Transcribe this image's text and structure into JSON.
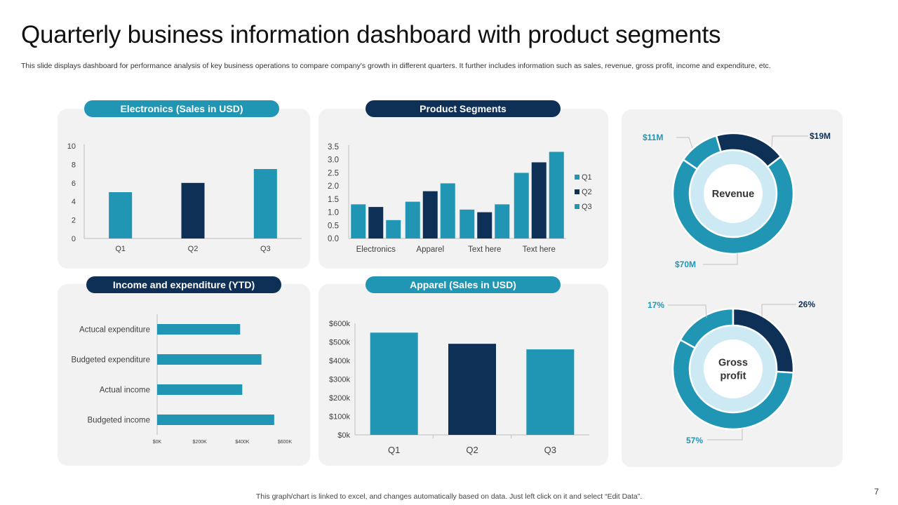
{
  "title": "Quarterly business information dashboard with product segments",
  "subtitle": "This slide displays dashboard for performance analysis of key business operations to compare company's growth in different quarters. It further includes information such as sales, revenue, gross profit, income and expenditure, etc.",
  "footer": "This graph/chart is linked to excel,  and changes automatically based on data. Just left click on it and select “Edit Data”.",
  "page_number": "7",
  "colors": {
    "teal": "#2196b4",
    "navy": "#0e2f56",
    "light": "#cdeaf4",
    "panel": "#f2f2f2"
  },
  "panels": {
    "electronics": "Electronics (Sales in USD)",
    "segments": "Product Segments",
    "income": "Income and expenditure (YTD)",
    "apparel": "Apparel (Sales in USD)"
  },
  "chart_data": [
    {
      "id": "electronics",
      "type": "bar",
      "title": "Electronics (Sales in USD)",
      "categories": [
        "Q1",
        "Q2",
        "Q3"
      ],
      "values": [
        5,
        6,
        7.5
      ],
      "ylim": [
        0,
        10
      ],
      "yticks": [
        "0",
        "2",
        "4",
        "6",
        "8",
        "10"
      ],
      "ytick_values": [
        0,
        2,
        4,
        6,
        8,
        10
      ],
      "colors": [
        "#2196b4",
        "#0e2f56",
        "#2196b4"
      ]
    },
    {
      "id": "segments",
      "type": "bar",
      "title": "Product Segments",
      "categories": [
        "Electronics",
        "Apparel",
        "Text here",
        "Text here"
      ],
      "series": [
        {
          "name": "Q1",
          "values": [
            1.3,
            1.4,
            1.1,
            2.5
          ],
          "color": "#2196b4"
        },
        {
          "name": "Q2",
          "values": [
            1.2,
            1.8,
            1.0,
            2.9
          ],
          "color": "#0e2f56"
        },
        {
          "name": "Q3",
          "values": [
            0.7,
            2.1,
            1.3,
            3.3
          ],
          "color": "#2196b4"
        }
      ],
      "ylim": [
        0,
        3.5
      ],
      "yticks": [
        "0.0",
        "0.5",
        "1.0",
        "1.5",
        "2.0",
        "2.5",
        "3.0",
        "3.5"
      ],
      "ytick_values": [
        0,
        0.5,
        1.0,
        1.5,
        2.0,
        2.5,
        3.0,
        3.5
      ],
      "legend": "right"
    },
    {
      "id": "income",
      "type": "bar",
      "orientation": "horizontal",
      "title": "Income and expenditure (YTD)",
      "categories": [
        "Actucal expenditure",
        "Budgeted expenditure",
        "Actual income",
        "Budgeted income"
      ],
      "values": [
        390,
        490,
        400,
        550
      ],
      "xlim": [
        0,
        600
      ],
      "xticks": [
        "$0K",
        "$200K",
        "$400K",
        "$600K"
      ],
      "xtick_values": [
        0,
        200,
        400,
        600
      ]
    },
    {
      "id": "apparel",
      "type": "bar",
      "title": "Apparel (Sales in USD)",
      "categories": [
        "Q1",
        "Q2",
        "Q3"
      ],
      "values": [
        550,
        490,
        460
      ],
      "ylim": [
        0,
        600
      ],
      "yticks": [
        "$0k",
        "$100k",
        "$200k",
        "$300k",
        "$400k",
        "$500k",
        "$600k"
      ],
      "ytick_values": [
        0,
        100,
        200,
        300,
        400,
        500,
        600
      ],
      "colors": [
        "#2196b4",
        "#0e2f56",
        "#2196b4"
      ]
    },
    {
      "id": "revenue",
      "type": "pie",
      "variant": "donut",
      "center_label": "Revenue",
      "slices": [
        {
          "label": "$11M",
          "value": 11,
          "color": "#2196b4"
        },
        {
          "label": "$19M",
          "value": 19,
          "color": "#0e2f56"
        },
        {
          "label": "$70M",
          "value": 70,
          "color": "#2196b4"
        }
      ]
    },
    {
      "id": "gross_profit",
      "type": "pie",
      "variant": "donut",
      "center_label": [
        "Gross",
        "profit"
      ],
      "slices": [
        {
          "label": "17%",
          "value": 17,
          "color": "#2196b4"
        },
        {
          "label": "26%",
          "value": 26,
          "color": "#0e2f56"
        },
        {
          "label": "57%",
          "value": 57,
          "color": "#2196b4"
        }
      ]
    }
  ]
}
